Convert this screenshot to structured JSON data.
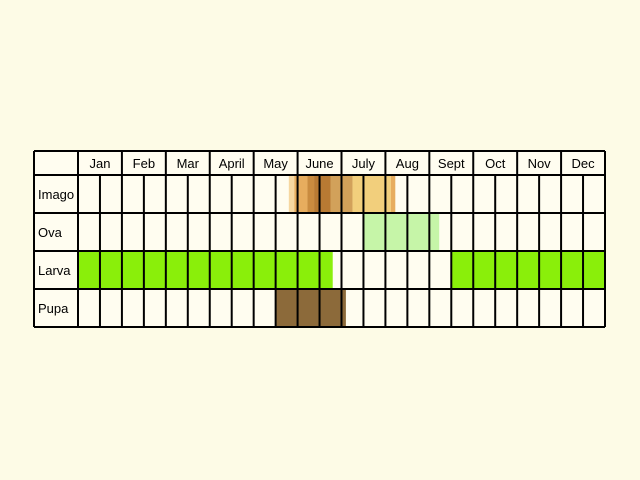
{
  "chart_data": {
    "type": "table",
    "months": [
      "Jan",
      "Feb",
      "Mar",
      "Apr",
      "May",
      "June",
      "July",
      "Aug",
      "Sept",
      "Oct",
      "Nov",
      "Dec"
    ],
    "header_months": [
      "Jan",
      "Feb",
      "Mar",
      "April",
      "May",
      "June",
      "July",
      "Aug",
      "Sept",
      "Oct",
      "Nov",
      "Dec"
    ],
    "subdivisions_per_month": 2,
    "stages": [
      {
        "label": "Imago",
        "periods": [
          {
            "start": 9.6,
            "end": 9.85,
            "color": "#f6d7a0"
          },
          {
            "start": 9.85,
            "end": 10.45,
            "color": "#e7ad5e"
          },
          {
            "start": 10.45,
            "end": 10.75,
            "color": "#c98b3f"
          },
          {
            "start": 10.75,
            "end": 11.5,
            "color": "#b87a33"
          },
          {
            "start": 11.5,
            "end": 12.5,
            "color": "#d2a15a"
          },
          {
            "start": 12.5,
            "end": 14.25,
            "color": "#f2cf7c"
          },
          {
            "start": 14.25,
            "end": 14.45,
            "color": "#e7ad5e"
          }
        ]
      },
      {
        "label": "Ova",
        "periods": [
          {
            "start": 13.0,
            "end": 16.45,
            "color": "#c6f5a8"
          }
        ]
      },
      {
        "label": "Larva",
        "periods": [
          {
            "start": 0.0,
            "end": 11.6,
            "color": "#8aef0a"
          },
          {
            "start": 17.0,
            "end": 24.0,
            "color": "#8aef0a"
          }
        ]
      },
      {
        "label": "Pupa",
        "periods": [
          {
            "start": 9.0,
            "end": 12.2,
            "color": "#8c6a3a"
          }
        ]
      }
    ]
  }
}
